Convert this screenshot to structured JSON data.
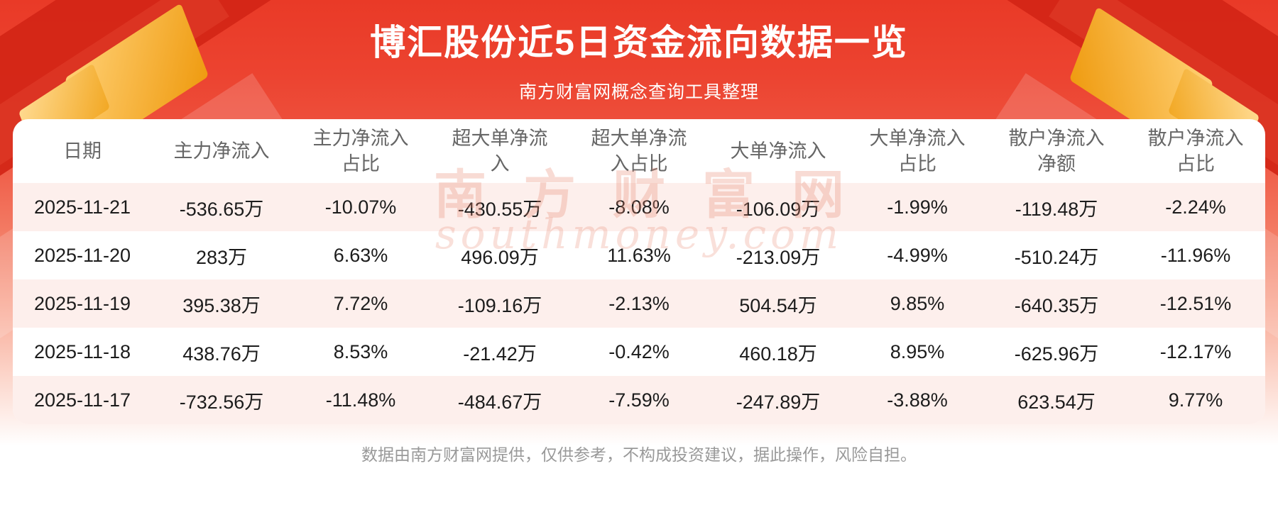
{
  "header": {
    "title": "博汇股份近5日资金流向数据一览",
    "subtitle": "南方财富网概念查询工具整理"
  },
  "watermark": {
    "cn": "南方财富网",
    "en": "southmoney.com"
  },
  "footer": {
    "disclaimer": "数据由南方财富网提供，仅供参考，不构成投资建议，据此操作，风险自担。"
  },
  "colors": {
    "banner_red": "#e93a27",
    "banner_dark_red": "#d22516",
    "gold_accent": "#ef9b10",
    "row_alt_pink": "#fdefec",
    "header_text": "#666666",
    "cell_text": "#1c1c1c",
    "footer_text": "#999999",
    "title_text": "#ffffff"
  },
  "chart_data": {
    "type": "table",
    "title": "博汇股份近5日资金流向数据一览",
    "columns": [
      "日期",
      "主力净流入",
      "主力净流入占比",
      "超大单净流入",
      "超大单净流入占比",
      "大单净流入",
      "大单净流入占比",
      "散户净流入净额",
      "散户净流入占比"
    ],
    "rows": [
      [
        "2025-11-21",
        "-536.65万",
        "-10.07%",
        "-430.55万",
        "-8.08%",
        "-106.09万",
        "-1.99%",
        "-119.48万",
        "-2.24%"
      ],
      [
        "2025-11-20",
        "283万",
        "6.63%",
        "496.09万",
        "11.63%",
        "-213.09万",
        "-4.99%",
        "-510.24万",
        "-11.96%"
      ],
      [
        "2025-11-19",
        "395.38万",
        "7.72%",
        "-109.16万",
        "-2.13%",
        "504.54万",
        "9.85%",
        "-640.35万",
        "-12.51%"
      ],
      [
        "2025-11-18",
        "438.76万",
        "8.53%",
        "-21.42万",
        "-0.42%",
        "460.18万",
        "8.95%",
        "-625.96万",
        "-12.17%"
      ],
      [
        "2025-11-17",
        "-732.56万",
        "-11.48%",
        "-484.67万",
        "-7.59%",
        "-247.89万",
        "-3.88%",
        "623.54万",
        "9.77%"
      ]
    ]
  }
}
